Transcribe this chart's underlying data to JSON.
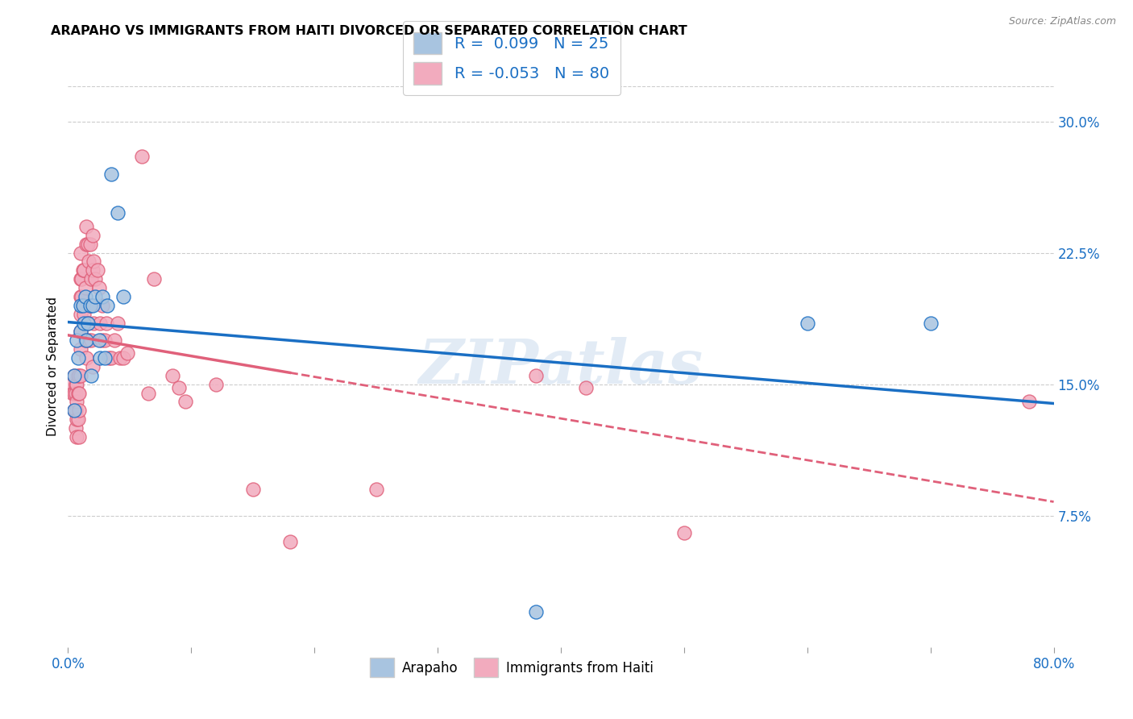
{
  "title": "ARAPAHO VS IMMIGRANTS FROM HAITI DIVORCED OR SEPARATED CORRELATION CHART",
  "source": "Source: ZipAtlas.com",
  "ylabel": "Divorced or Separated",
  "yticks": [
    "7.5%",
    "15.0%",
    "22.5%",
    "30.0%"
  ],
  "ytick_vals": [
    0.075,
    0.15,
    0.225,
    0.3
  ],
  "xtick_labels": [
    "0.0%",
    "",
    "",
    "",
    "",
    "",
    "",
    "",
    "80.0%"
  ],
  "xlim": [
    0.0,
    0.8
  ],
  "ylim": [
    0.0,
    0.32
  ],
  "color_arapaho": "#a8c4e0",
  "color_haiti": "#f2abbe",
  "line_color_arapaho": "#1a6fc4",
  "line_color_haiti": "#e0607a",
  "watermark": "ZIPatlas",
  "arapaho_x": [
    0.005,
    0.005,
    0.007,
    0.008,
    0.01,
    0.01,
    0.012,
    0.013,
    0.014,
    0.015,
    0.016,
    0.018,
    0.019,
    0.02,
    0.022,
    0.025,
    0.026,
    0.028,
    0.03,
    0.032,
    0.035,
    0.04,
    0.045,
    0.38,
    0.6,
    0.7
  ],
  "arapaho_y": [
    0.155,
    0.135,
    0.175,
    0.165,
    0.195,
    0.18,
    0.195,
    0.185,
    0.2,
    0.175,
    0.185,
    0.195,
    0.155,
    0.195,
    0.2,
    0.175,
    0.165,
    0.2,
    0.165,
    0.195,
    0.27,
    0.248,
    0.2,
    0.02,
    0.185,
    0.185
  ],
  "haiti_x": [
    0.003,
    0.004,
    0.005,
    0.005,
    0.005,
    0.006,
    0.006,
    0.006,
    0.006,
    0.007,
    0.007,
    0.007,
    0.007,
    0.008,
    0.008,
    0.008,
    0.009,
    0.009,
    0.009,
    0.009,
    0.01,
    0.01,
    0.01,
    0.01,
    0.01,
    0.01,
    0.01,
    0.011,
    0.011,
    0.012,
    0.012,
    0.013,
    0.013,
    0.014,
    0.014,
    0.015,
    0.015,
    0.015,
    0.016,
    0.016,
    0.017,
    0.017,
    0.018,
    0.018,
    0.019,
    0.019,
    0.02,
    0.02,
    0.02,
    0.021,
    0.021,
    0.022,
    0.024,
    0.025,
    0.026,
    0.027,
    0.028,
    0.03,
    0.031,
    0.033,
    0.035,
    0.038,
    0.04,
    0.042,
    0.045,
    0.048,
    0.06,
    0.065,
    0.07,
    0.085,
    0.09,
    0.095,
    0.12,
    0.15,
    0.18,
    0.25,
    0.38,
    0.42,
    0.5,
    0.78
  ],
  "haiti_y": [
    0.15,
    0.145,
    0.155,
    0.145,
    0.135,
    0.15,
    0.145,
    0.135,
    0.125,
    0.15,
    0.14,
    0.13,
    0.12,
    0.155,
    0.145,
    0.13,
    0.155,
    0.145,
    0.135,
    0.12,
    0.225,
    0.21,
    0.2,
    0.19,
    0.18,
    0.17,
    0.155,
    0.21,
    0.2,
    0.215,
    0.195,
    0.215,
    0.19,
    0.205,
    0.175,
    0.24,
    0.23,
    0.165,
    0.23,
    0.185,
    0.22,
    0.175,
    0.23,
    0.195,
    0.21,
    0.175,
    0.235,
    0.215,
    0.16,
    0.22,
    0.185,
    0.21,
    0.215,
    0.205,
    0.185,
    0.175,
    0.195,
    0.175,
    0.185,
    0.165,
    0.165,
    0.175,
    0.185,
    0.165,
    0.165,
    0.168,
    0.28,
    0.145,
    0.21,
    0.155,
    0.148,
    0.14,
    0.15,
    0.09,
    0.06,
    0.09,
    0.155,
    0.148,
    0.065,
    0.14
  ]
}
